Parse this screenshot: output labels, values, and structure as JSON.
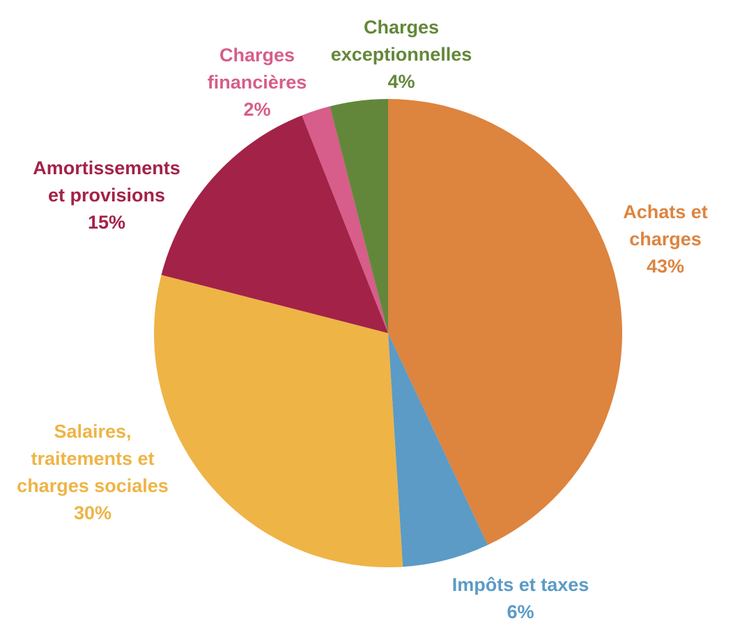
{
  "chart_data": {
    "type": "pie",
    "title": "",
    "unit": "%",
    "start": "top",
    "direction": "clockwise",
    "slices": [
      {
        "name": "Achats et charges",
        "label_lines": [
          "Achats et",
          "charges"
        ],
        "value": 43,
        "value_label": "43%",
        "color": "#DD843F"
      },
      {
        "name": "Impôts et taxes",
        "label_lines": [
          "Impôts et taxes"
        ],
        "value": 6,
        "value_label": "6%",
        "color": "#5B9BC6"
      },
      {
        "name": "Salaires, traitements et charges sociales",
        "label_lines": [
          "Salaires,",
          "traitements et",
          "charges sociales"
        ],
        "value": 30,
        "value_label": "30%",
        "color": "#EEB446"
      },
      {
        "name": "Amortissements et provisions",
        "label_lines": [
          "Amortissements",
          "et provisions"
        ],
        "value": 15,
        "value_label": "15%",
        "color": "#A32248"
      },
      {
        "name": "Charges financières",
        "label_lines": [
          "Charges",
          "financières"
        ],
        "value": 2,
        "value_label": "2%",
        "color": "#D75D8A"
      },
      {
        "name": "Charges exceptionnelles",
        "label_lines": [
          "Charges",
          "exceptionnelles"
        ],
        "value": 4,
        "value_label": "4%",
        "color": "#63873A"
      }
    ]
  }
}
